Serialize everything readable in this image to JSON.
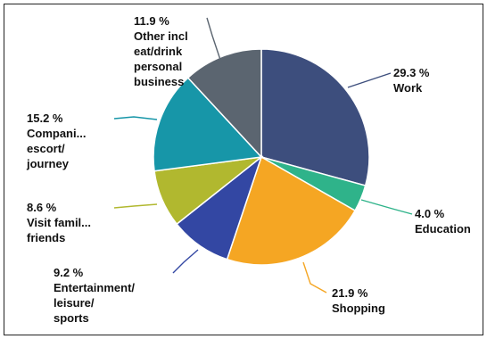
{
  "chart_data": {
    "type": "pie",
    "title": "",
    "slices": [
      {
        "label_lines": [
          "Work"
        ],
        "value": 29.3,
        "value_text": "29.3 %",
        "color": "#3d4e7d",
        "leader_color": "#3d4e7d"
      },
      {
        "label_lines": [
          "Education"
        ],
        "value": 4.0,
        "value_text": "4.0 %",
        "color": "#2fb38a",
        "leader_color": "#2fb38a"
      },
      {
        "label_lines": [
          "Shopping"
        ],
        "value": 21.9,
        "value_text": "21.9 %",
        "color": "#f5a623",
        "leader_color": "#f5a623"
      },
      {
        "label_lines": [
          "Entertainment/",
          "leisure/",
          "sports"
        ],
        "value": 9.2,
        "value_text": "9.2 %",
        "color": "#3347a3",
        "leader_color": "#3347a3"
      },
      {
        "label_lines": [
          "Visit famil...",
          "friends"
        ],
        "value": 8.6,
        "value_text": "8.6 %",
        "color": "#b1b82f",
        "leader_color": "#b1b82f"
      },
      {
        "label_lines": [
          "Compani...",
          "escort/",
          "journey"
        ],
        "value": 15.2,
        "value_text": "15.2 %",
        "color": "#1796a8",
        "leader_color": "#1796a8"
      },
      {
        "label_lines": [
          "Other incl",
          "eat/drink",
          "personal",
          "business"
        ],
        "value": 11.9,
        "value_text": "11.9 %",
        "color": "#5b6570",
        "leader_color": "#5b6570"
      }
    ]
  }
}
